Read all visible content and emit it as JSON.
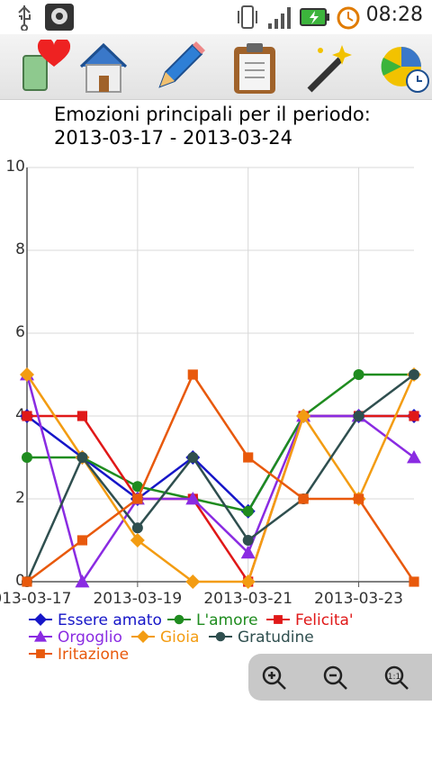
{
  "status_bar": {
    "time": "08:28",
    "icons": [
      "usb-icon",
      "android-debug-icon",
      "vibrate-icon",
      "signal-icon",
      "battery-charging-icon",
      "alarm-icon"
    ]
  },
  "toolbar": {
    "buttons": [
      {
        "name": "favorites-button",
        "icon": "heart-book-icon"
      },
      {
        "name": "home-button",
        "icon": "home-icon"
      },
      {
        "name": "edit-button",
        "icon": "pencil-icon"
      },
      {
        "name": "clipboard-button",
        "icon": "clipboard-icon"
      },
      {
        "name": "magic-button",
        "icon": "magic-wand-icon"
      },
      {
        "name": "stats-button",
        "icon": "pie-clock-icon"
      }
    ]
  },
  "zoom_controls": [
    "zoom-in-icon",
    "zoom-out-icon",
    "zoom-reset-icon"
  ],
  "chart_data": {
    "type": "line",
    "title": "Emozioni principali per il periodo:\n2013-03-17 - 2013-03-24",
    "x": [
      "2013-03-17",
      "2013-03-18",
      "2013-03-19",
      "2013-03-20",
      "2013-03-21",
      "2013-03-22",
      "2013-03-23",
      "2013-03-24"
    ],
    "x_tick_labels": [
      "2013-03-17",
      "2013-03-19",
      "2013-03-21",
      "2013-03-23"
    ],
    "y_ticks": [
      "0",
      "2",
      "4",
      "6",
      "8",
      "10"
    ],
    "ylim": [
      0,
      10
    ],
    "grid": true,
    "legend_placement": "bottom",
    "series": [
      {
        "name": "Essere amato",
        "color": "#1616c8",
        "marker": "diamond",
        "values": [
          4,
          3,
          2,
          3,
          1.7,
          4,
          4,
          4
        ]
      },
      {
        "name": "L'amore",
        "color": "#1f8c1f",
        "marker": "circle",
        "values": [
          3,
          3,
          2.3,
          2,
          1.7,
          4,
          5,
          5
        ]
      },
      {
        "name": "Felicita'",
        "color": "#e01818",
        "marker": "square",
        "values": [
          4,
          4,
          2,
          2,
          0,
          4,
          4,
          4
        ]
      },
      {
        "name": "Orgoglio",
        "color": "#8a2be2",
        "marker": "triangle",
        "values": [
          5,
          0,
          2,
          2,
          0.7,
          4,
          4,
          3
        ]
      },
      {
        "name": "Gioia",
        "color": "#f39c12",
        "marker": "diamond",
        "values": [
          5,
          3,
          1,
          0,
          0,
          4,
          2,
          5
        ]
      },
      {
        "name": "Gratudine",
        "color": "#2f4f4f",
        "marker": "circle",
        "values": [
          0,
          3,
          1.3,
          3,
          1,
          2,
          4,
          5
        ]
      },
      {
        "name": "Iritazione",
        "color": "#e8590c",
        "marker": "square",
        "values": [
          0,
          1,
          2,
          5,
          3,
          2,
          2,
          0
        ]
      }
    ]
  }
}
